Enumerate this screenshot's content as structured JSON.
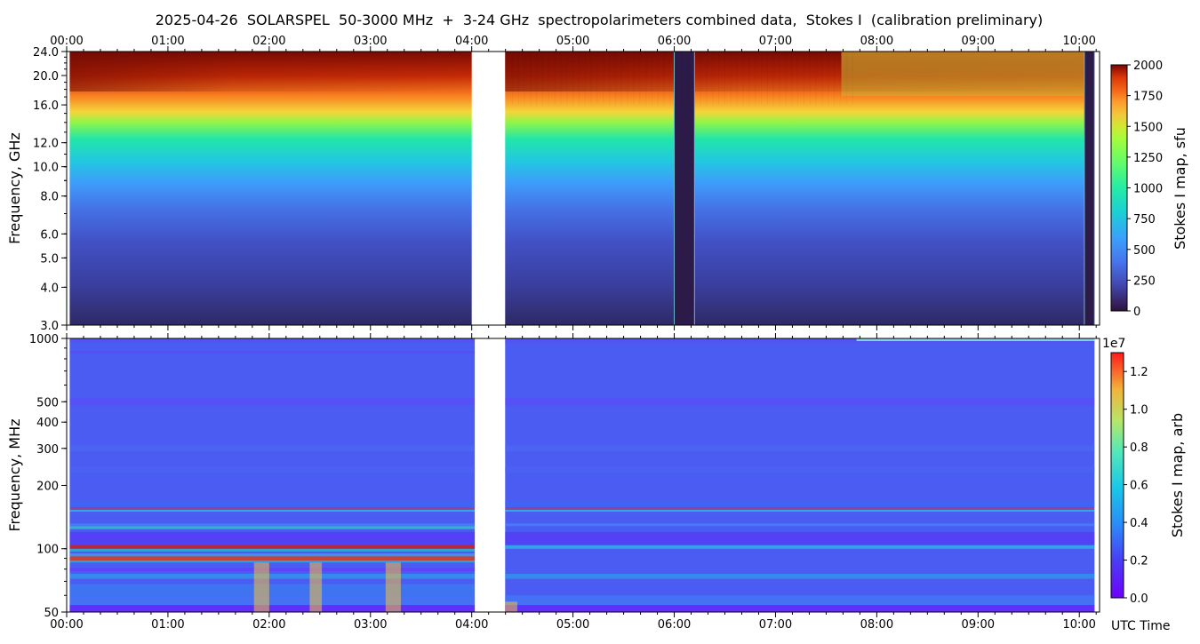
{
  "title": "2025-04-26  SOLARSPEL  50-3000 MHz  +  3-24 GHz  spectropolarimeters combined data,  Stokes I  (calibration preliminary)",
  "time_ticks": [
    "00:00",
    "01:00",
    "02:00",
    "03:00",
    "04:00",
    "05:00",
    "06:00",
    "07:00",
    "08:00",
    "09:00",
    "10:00"
  ],
  "utc_label": "UTC Time",
  "colors": {
    "low": "#30123b",
    "mid": "#1ae4b6",
    "high": "#7a0403"
  },
  "chart_data": [
    {
      "type": "heatmap",
      "name": "top",
      "ylabel": "Frequency, GHz",
      "yscale": "log",
      "ylim": [
        3.0,
        24.0
      ],
      "yticks": [
        3.0,
        4.0,
        5.0,
        6.0,
        8.0,
        10.0,
        12.0,
        16.0,
        20.0,
        24.0
      ],
      "xlim_hours": [
        0.0,
        10.2
      ],
      "data_coverage_hours": [
        [
          0.03,
          4.0
        ],
        [
          4.33,
          10.15
        ]
      ],
      "gap_hours": [
        4.0,
        4.33
      ],
      "colorbar": {
        "label": "Stokes I map, sfu",
        "min": 0,
        "max": 2000,
        "ticks": [
          0,
          250,
          500,
          750,
          1000,
          1250,
          1500,
          1750,
          2000
        ],
        "multiplier": ""
      },
      "low_intensity_bands_hours": [
        [
          6.0,
          6.2
        ],
        [
          10.05,
          10.15
        ]
      ]
    },
    {
      "type": "heatmap",
      "name": "bottom",
      "ylabel": "Frequency, MHz",
      "yscale": "log",
      "ylim": [
        50,
        1000
      ],
      "yticks": [
        50,
        100,
        200,
        300,
        400,
        500,
        1000
      ],
      "xlim_hours": [
        0.0,
        10.2
      ],
      "data_coverage_hours": [
        [
          0.03,
          4.03
        ],
        [
          4.33,
          10.15
        ]
      ],
      "gap_hours": [
        4.03,
        4.33
      ],
      "colorbar": {
        "label": "Stokes I map, arb",
        "min": 0.0,
        "max": 1.3,
        "ticks": [
          0.0,
          0.2,
          0.4,
          0.6,
          0.8,
          1.0,
          1.2
        ],
        "multiplier": "1e7"
      },
      "bright_bands_mhz": [
        90,
        100,
        125,
        155
      ]
    }
  ]
}
